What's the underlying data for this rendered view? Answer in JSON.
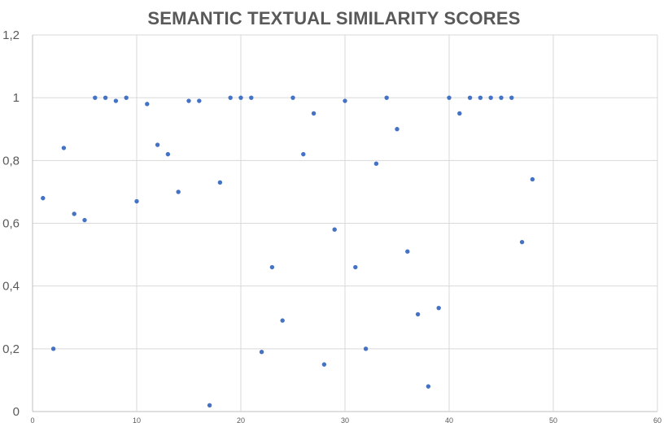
{
  "chart_data": {
    "type": "scatter",
    "title": "SEMANTIC TEXTUAL SIMILARITY SCORES",
    "xlabel": "",
    "ylabel": "",
    "xlim": [
      0,
      60
    ],
    "ylim": [
      0,
      1.2
    ],
    "x_ticks": [
      0,
      10,
      20,
      30,
      40,
      50,
      60
    ],
    "x_tick_labels": [
      "0",
      "10",
      "20",
      "30",
      "40",
      "50",
      "60"
    ],
    "y_ticks": [
      0,
      0.2,
      0.4,
      0.6,
      0.8,
      1,
      1.2
    ],
    "y_tick_labels": [
      "0",
      "0,2",
      "0,4",
      "0,6",
      "0,8",
      "1",
      "1,2"
    ],
    "grid": true,
    "legend": "none",
    "marker_color": "#4472C4",
    "series": [
      {
        "points": [
          [
            1,
            0.68
          ],
          [
            2,
            0.2
          ],
          [
            3,
            0.84
          ],
          [
            4,
            0.63
          ],
          [
            5,
            0.61
          ],
          [
            6,
            1.0
          ],
          [
            7,
            1.0
          ],
          [
            8,
            0.99
          ],
          [
            9,
            1.0
          ],
          [
            10,
            0.67
          ],
          [
            11,
            0.98
          ],
          [
            12,
            0.85
          ],
          [
            13,
            0.82
          ],
          [
            14,
            0.7
          ],
          [
            15,
            0.99
          ],
          [
            16,
            0.99
          ],
          [
            17,
            0.02
          ],
          [
            18,
            0.73
          ],
          [
            19,
            1.0
          ],
          [
            20,
            1.0
          ],
          [
            21,
            1.0
          ],
          [
            22,
            0.19
          ],
          [
            23,
            0.46
          ],
          [
            24,
            0.29
          ],
          [
            25,
            1.0
          ],
          [
            26,
            0.82
          ],
          [
            27,
            0.95
          ],
          [
            28,
            0.15
          ],
          [
            29,
            0.58
          ],
          [
            30,
            0.99
          ],
          [
            31,
            0.46
          ],
          [
            32,
            0.2
          ],
          [
            33,
            0.79
          ],
          [
            34,
            1.0
          ],
          [
            35,
            0.9
          ],
          [
            36,
            0.51
          ],
          [
            37,
            0.31
          ],
          [
            38,
            0.08
          ],
          [
            39,
            0.33
          ],
          [
            40,
            1.0
          ],
          [
            41,
            0.95
          ],
          [
            42,
            1.0
          ],
          [
            43,
            1.0
          ],
          [
            44,
            1.0
          ],
          [
            45,
            1.0
          ],
          [
            46,
            1.0
          ],
          [
            47,
            0.54
          ],
          [
            48,
            0.74
          ]
        ]
      }
    ]
  }
}
